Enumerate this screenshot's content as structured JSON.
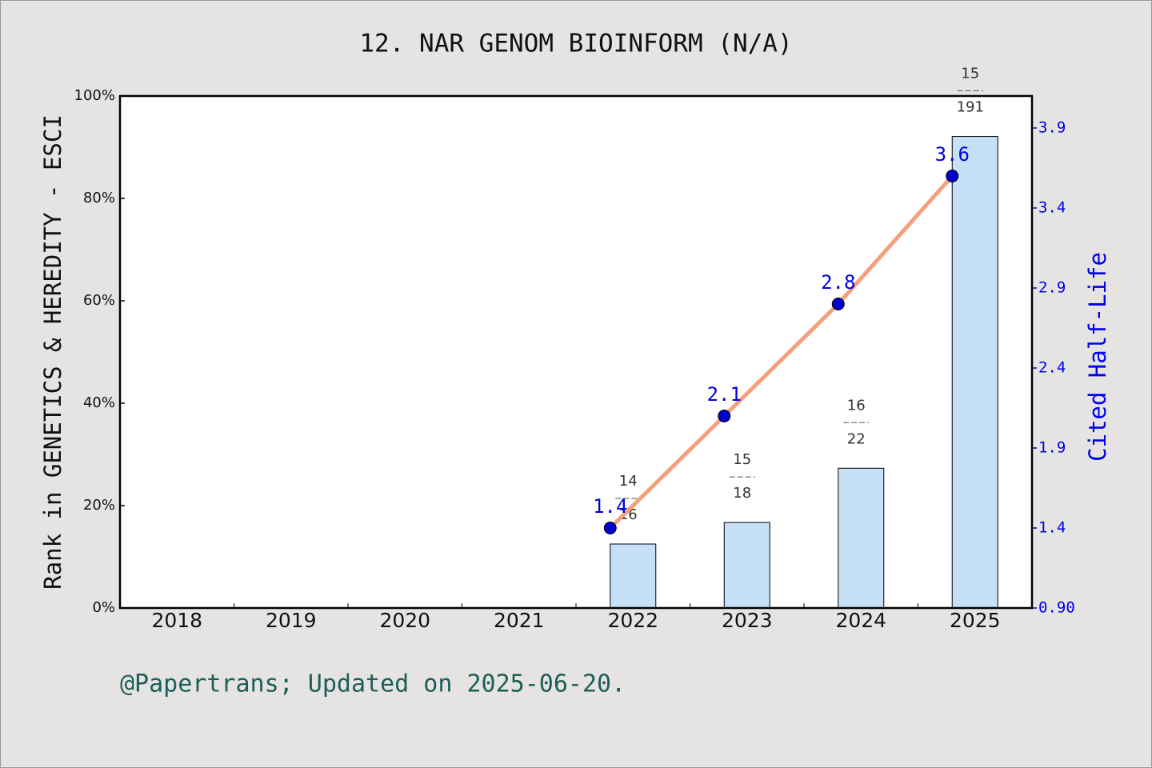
{
  "chart_data": {
    "type": "bar",
    "title": "12. NAR GENOM BIOINFORM (N/A)",
    "ylabel": "Rank in GENETICS & HEREDITY - ESCI",
    "y2label": "Cited Half-Life",
    "footer": "@Papertrans; Updated on 2025-06-20.",
    "categories": [
      "2018",
      "2019",
      "2020",
      "2021",
      "2022",
      "2023",
      "2024",
      "2025"
    ],
    "ylim": [
      0,
      100
    ],
    "yticks": [
      {
        "value": 0,
        "label": "0%"
      },
      {
        "value": 20,
        "label": "20%"
      },
      {
        "value": 40,
        "label": "40%"
      },
      {
        "value": 60,
        "label": "60%"
      },
      {
        "value": 80,
        "label": "80%"
      },
      {
        "value": 100,
        "label": "100%"
      }
    ],
    "y2lim": [
      0.9,
      4.1
    ],
    "y2ticks": [
      {
        "value": 0.9,
        "label": "0.90"
      },
      1.4,
      1.9,
      2.4,
      2.9,
      3.4,
      3.9
    ],
    "series": [
      {
        "type": "bar",
        "color": "#c6e0f7",
        "values": [
          null,
          null,
          null,
          null,
          12.5,
          16.7,
          27.3,
          92.1
        ],
        "rank_labels": [
          null,
          null,
          null,
          null,
          {
            "rank": "14",
            "total": "16"
          },
          {
            "rank": "15",
            "total": "18"
          },
          {
            "rank": "16",
            "total": "22"
          },
          {
            "rank": "15",
            "total": "191"
          }
        ]
      },
      {
        "type": "line",
        "axis": "y2",
        "color": "#f4a07a",
        "marker_color": "#0000cc",
        "values": [
          null,
          null,
          null,
          null,
          1.4,
          2.1,
          2.8,
          3.6
        ]
      }
    ]
  }
}
